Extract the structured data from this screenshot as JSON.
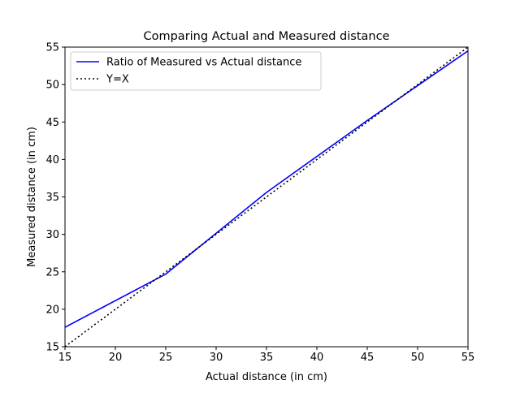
{
  "chart_data": {
    "type": "line",
    "title": "Comparing Actual and Measured distance",
    "xlabel": "Actual distance  (in cm)",
    "ylabel": "Measured distance (in cm)",
    "xlim": [
      15,
      55
    ],
    "ylim": [
      15,
      55
    ],
    "xticks": [
      15,
      20,
      25,
      30,
      35,
      40,
      45,
      50,
      55
    ],
    "yticks": [
      15,
      20,
      25,
      30,
      35,
      40,
      45,
      50,
      55
    ],
    "grid": false,
    "legend_position": "top-left",
    "series": [
      {
        "name": "Ratio of Measured vs Actual distance",
        "color": "#0000ff",
        "style": "solid",
        "x": [
          15,
          25,
          35,
          45,
          55
        ],
        "y": [
          17.6,
          24.7,
          35.6,
          45.2,
          54.5
        ]
      },
      {
        "name": "Y=X",
        "color": "#000000",
        "style": "dotted",
        "x": [
          15,
          55
        ],
        "y": [
          15,
          55
        ]
      }
    ]
  }
}
